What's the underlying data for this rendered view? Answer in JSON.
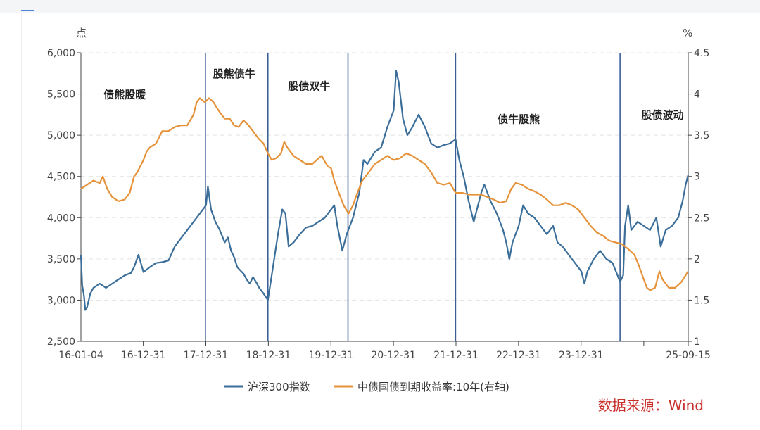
{
  "source_note": "数据来源：Wind",
  "chart_data": {
    "type": "line",
    "title": "",
    "left_axis": {
      "unit": "点",
      "ylim": [
        2500,
        6000
      ],
      "ticks": [
        "2,500",
        "3,000",
        "3,500",
        "4,000",
        "4,500",
        "5,000",
        "5,500",
        "6,000"
      ]
    },
    "right_axis": {
      "unit": "%",
      "ylim": [
        1,
        4.5
      ],
      "ticks": [
        "1",
        "1.5",
        "2",
        "2.5",
        "3",
        "3.5",
        "4",
        "4.5"
      ]
    },
    "x_labels": [
      "16-01-04",
      "16-12-31",
      "17-12-31",
      "18-12-31",
      "19-12-31",
      "20-12-31",
      "21-12-31",
      "22-12-31",
      "23-12-31",
      "25-09-15"
    ],
    "period_dividers": [
      2017.99,
      2018.99,
      2020.27,
      2021.99,
      2024.62
    ],
    "regimes": [
      {
        "label": "债熊股暖",
        "x": 2016.7,
        "y": 5450
      },
      {
        "label": "股熊债牛",
        "x": 2018.45,
        "y": 5700
      },
      {
        "label": "股债双牛",
        "x": 2019.65,
        "y": 5550
      },
      {
        "label": "债牛股熊",
        "x": 2023.0,
        "y": 5150
      },
      {
        "label": "股债波动",
        "x": 2025.3,
        "y": 5200
      }
    ],
    "series": [
      {
        "name": "沪深300指数",
        "axis": "left",
        "color": "#3c6e9a",
        "points": [
          [
            2016.0,
            3550
          ],
          [
            2016.02,
            3180
          ],
          [
            2016.05,
            3050
          ],
          [
            2016.07,
            2880
          ],
          [
            2016.1,
            2920
          ],
          [
            2016.15,
            3080
          ],
          [
            2016.2,
            3150
          ],
          [
            2016.3,
            3200
          ],
          [
            2016.4,
            3150
          ],
          [
            2016.5,
            3200
          ],
          [
            2016.6,
            3250
          ],
          [
            2016.7,
            3300
          ],
          [
            2016.8,
            3330
          ],
          [
            2016.85,
            3400
          ],
          [
            2016.92,
            3550
          ],
          [
            2017.0,
            3340
          ],
          [
            2017.1,
            3400
          ],
          [
            2017.2,
            3450
          ],
          [
            2017.3,
            3460
          ],
          [
            2017.4,
            3480
          ],
          [
            2017.5,
            3650
          ],
          [
            2017.6,
            3750
          ],
          [
            2017.7,
            3850
          ],
          [
            2017.8,
            3950
          ],
          [
            2017.9,
            4050
          ],
          [
            2018.0,
            4150
          ],
          [
            2018.03,
            4380
          ],
          [
            2018.08,
            4100
          ],
          [
            2018.15,
            3950
          ],
          [
            2018.22,
            3850
          ],
          [
            2018.3,
            3700
          ],
          [
            2018.35,
            3760
          ],
          [
            2018.4,
            3600
          ],
          [
            2018.45,
            3520
          ],
          [
            2018.5,
            3400
          ],
          [
            2018.55,
            3360
          ],
          [
            2018.6,
            3320
          ],
          [
            2018.65,
            3250
          ],
          [
            2018.7,
            3200
          ],
          [
            2018.75,
            3280
          ],
          [
            2018.8,
            3220
          ],
          [
            2018.85,
            3150
          ],
          [
            2018.92,
            3080
          ],
          [
            2018.99,
            3000
          ],
          [
            2019.05,
            3300
          ],
          [
            2019.15,
            3800
          ],
          [
            2019.22,
            4100
          ],
          [
            2019.27,
            4050
          ],
          [
            2019.32,
            3650
          ],
          [
            2019.4,
            3700
          ],
          [
            2019.5,
            3800
          ],
          [
            2019.6,
            3880
          ],
          [
            2019.7,
            3900
          ],
          [
            2019.8,
            3950
          ],
          [
            2019.9,
            4000
          ],
          [
            2020.0,
            4100
          ],
          [
            2020.05,
            4150
          ],
          [
            2020.1,
            3900
          ],
          [
            2020.18,
            3600
          ],
          [
            2020.25,
            3800
          ],
          [
            2020.35,
            4000
          ],
          [
            2020.45,
            4300
          ],
          [
            2020.52,
            4700
          ],
          [
            2020.58,
            4650
          ],
          [
            2020.7,
            4800
          ],
          [
            2020.8,
            4850
          ],
          [
            2020.9,
            5100
          ],
          [
            2021.0,
            5300
          ],
          [
            2021.04,
            5780
          ],
          [
            2021.08,
            5650
          ],
          [
            2021.15,
            5200
          ],
          [
            2021.22,
            5000
          ],
          [
            2021.3,
            5100
          ],
          [
            2021.4,
            5250
          ],
          [
            2021.5,
            5100
          ],
          [
            2021.6,
            4900
          ],
          [
            2021.7,
            4850
          ],
          [
            2021.8,
            4880
          ],
          [
            2021.9,
            4900
          ],
          [
            2021.99,
            4950
          ],
          [
            2022.05,
            4700
          ],
          [
            2022.12,
            4500
          ],
          [
            2022.2,
            4200
          ],
          [
            2022.28,
            3950
          ],
          [
            2022.4,
            4300
          ],
          [
            2022.45,
            4400
          ],
          [
            2022.55,
            4200
          ],
          [
            2022.65,
            4050
          ],
          [
            2022.75,
            3850
          ],
          [
            2022.8,
            3700
          ],
          [
            2022.85,
            3500
          ],
          [
            2022.9,
            3700
          ],
          [
            2023.0,
            3900
          ],
          [
            2023.07,
            4150
          ],
          [
            2023.15,
            4050
          ],
          [
            2023.25,
            4000
          ],
          [
            2023.35,
            3900
          ],
          [
            2023.45,
            3800
          ],
          [
            2023.55,
            3900
          ],
          [
            2023.62,
            3700
          ],
          [
            2023.7,
            3650
          ],
          [
            2023.8,
            3550
          ],
          [
            2023.9,
            3450
          ],
          [
            2024.0,
            3350
          ],
          [
            2024.05,
            3200
          ],
          [
            2024.1,
            3350
          ],
          [
            2024.2,
            3500
          ],
          [
            2024.3,
            3600
          ],
          [
            2024.4,
            3500
          ],
          [
            2024.5,
            3450
          ],
          [
            2024.58,
            3300
          ],
          [
            2024.62,
            3220
          ],
          [
            2024.67,
            3300
          ],
          [
            2024.7,
            3900
          ],
          [
            2024.75,
            4150
          ],
          [
            2024.8,
            3850
          ],
          [
            2024.9,
            3950
          ],
          [
            2025.0,
            3900
          ],
          [
            2025.1,
            3850
          ],
          [
            2025.2,
            4000
          ],
          [
            2025.27,
            3650
          ],
          [
            2025.35,
            3850
          ],
          [
            2025.45,
            3900
          ],
          [
            2025.55,
            4000
          ],
          [
            2025.62,
            4200
          ],
          [
            2025.67,
            4400
          ],
          [
            2025.71,
            4520
          ]
        ]
      },
      {
        "name": "中债国债到期收益率:10年(右轴)",
        "axis": "right",
        "color": "#e59239",
        "points": [
          [
            2016.0,
            2.85
          ],
          [
            2016.1,
            2.9
          ],
          [
            2016.2,
            2.95
          ],
          [
            2016.3,
            2.92
          ],
          [
            2016.35,
            3.0
          ],
          [
            2016.42,
            2.85
          ],
          [
            2016.5,
            2.75
          ],
          [
            2016.6,
            2.7
          ],
          [
            2016.7,
            2.72
          ],
          [
            2016.78,
            2.8
          ],
          [
            2016.85,
            3.0
          ],
          [
            2016.9,
            3.05
          ],
          [
            2017.0,
            3.2
          ],
          [
            2017.05,
            3.3
          ],
          [
            2017.1,
            3.35
          ],
          [
            2017.2,
            3.4
          ],
          [
            2017.3,
            3.55
          ],
          [
            2017.4,
            3.55
          ],
          [
            2017.5,
            3.6
          ],
          [
            2017.6,
            3.62
          ],
          [
            2017.7,
            3.62
          ],
          [
            2017.8,
            3.75
          ],
          [
            2017.85,
            3.9
          ],
          [
            2017.9,
            3.95
          ],
          [
            2017.98,
            3.9
          ],
          [
            2018.05,
            3.95
          ],
          [
            2018.12,
            3.9
          ],
          [
            2018.2,
            3.8
          ],
          [
            2018.3,
            3.7
          ],
          [
            2018.38,
            3.7
          ],
          [
            2018.45,
            3.62
          ],
          [
            2018.52,
            3.6
          ],
          [
            2018.6,
            3.68
          ],
          [
            2018.68,
            3.62
          ],
          [
            2018.75,
            3.55
          ],
          [
            2018.85,
            3.45
          ],
          [
            2018.92,
            3.4
          ],
          [
            2018.99,
            3.28
          ],
          [
            2019.05,
            3.2
          ],
          [
            2019.12,
            3.22
          ],
          [
            2019.2,
            3.28
          ],
          [
            2019.25,
            3.42
          ],
          [
            2019.3,
            3.35
          ],
          [
            2019.4,
            3.25
          ],
          [
            2019.5,
            3.2
          ],
          [
            2019.6,
            3.15
          ],
          [
            2019.7,
            3.15
          ],
          [
            2019.8,
            3.22
          ],
          [
            2019.85,
            3.25
          ],
          [
            2019.9,
            3.18
          ],
          [
            2019.95,
            3.12
          ],
          [
            2020.0,
            3.1
          ],
          [
            2020.05,
            2.95
          ],
          [
            2020.1,
            2.85
          ],
          [
            2020.15,
            2.75
          ],
          [
            2020.2,
            2.65
          ],
          [
            2020.28,
            2.55
          ],
          [
            2020.35,
            2.65
          ],
          [
            2020.42,
            2.8
          ],
          [
            2020.5,
            2.95
          ],
          [
            2020.6,
            3.05
          ],
          [
            2020.7,
            3.15
          ],
          [
            2020.8,
            3.2
          ],
          [
            2020.9,
            3.25
          ],
          [
            2021.0,
            3.2
          ],
          [
            2021.1,
            3.22
          ],
          [
            2021.2,
            3.28
          ],
          [
            2021.3,
            3.25
          ],
          [
            2021.4,
            3.2
          ],
          [
            2021.5,
            3.15
          ],
          [
            2021.6,
            3.05
          ],
          [
            2021.7,
            2.92
          ],
          [
            2021.8,
            2.9
          ],
          [
            2021.9,
            2.92
          ],
          [
            2021.99,
            2.8
          ],
          [
            2022.1,
            2.8
          ],
          [
            2022.2,
            2.78
          ],
          [
            2022.3,
            2.78
          ],
          [
            2022.4,
            2.78
          ],
          [
            2022.5,
            2.75
          ],
          [
            2022.6,
            2.72
          ],
          [
            2022.7,
            2.68
          ],
          [
            2022.8,
            2.7
          ],
          [
            2022.88,
            2.85
          ],
          [
            2022.95,
            2.92
          ],
          [
            2023.05,
            2.9
          ],
          [
            2023.15,
            2.85
          ],
          [
            2023.25,
            2.82
          ],
          [
            2023.35,
            2.78
          ],
          [
            2023.45,
            2.72
          ],
          [
            2023.55,
            2.65
          ],
          [
            2023.65,
            2.65
          ],
          [
            2023.75,
            2.68
          ],
          [
            2023.85,
            2.65
          ],
          [
            2023.95,
            2.6
          ],
          [
            2024.05,
            2.5
          ],
          [
            2024.15,
            2.4
          ],
          [
            2024.25,
            2.32
          ],
          [
            2024.35,
            2.28
          ],
          [
            2024.45,
            2.22
          ],
          [
            2024.55,
            2.2
          ],
          [
            2024.65,
            2.18
          ],
          [
            2024.75,
            2.12
          ],
          [
            2024.85,
            2.05
          ],
          [
            2024.92,
            1.92
          ],
          [
            2025.0,
            1.75
          ],
          [
            2025.05,
            1.65
          ],
          [
            2025.1,
            1.62
          ],
          [
            2025.18,
            1.65
          ],
          [
            2025.25,
            1.85
          ],
          [
            2025.3,
            1.75
          ],
          [
            2025.4,
            1.65
          ],
          [
            2025.5,
            1.65
          ],
          [
            2025.6,
            1.72
          ],
          [
            2025.71,
            1.85
          ]
        ]
      }
    ]
  }
}
